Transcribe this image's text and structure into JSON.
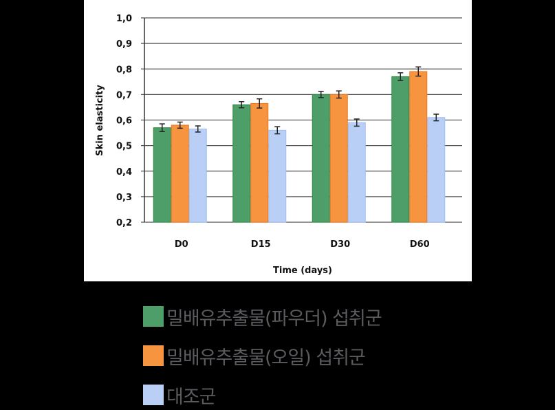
{
  "chart_data": {
    "type": "bar",
    "title": "",
    "xlabel": "Time (days)",
    "ylabel": "Skin elasticity",
    "ylim": [
      0.2,
      1.0
    ],
    "yticks": [
      "0,2",
      "0,3",
      "0,4",
      "0,5",
      "0,6",
      "0,7",
      "0,8",
      "0,9",
      "1,0"
    ],
    "grid": true,
    "legend_position": "bottom",
    "categories": [
      "D0",
      "D15",
      "D30",
      "D60"
    ],
    "series": [
      {
        "name": "밀배유추출물(파우더) 섭취군",
        "color": "#4e9e6a",
        "values": [
          0.57,
          0.66,
          0.7,
          0.77
        ],
        "errors": [
          0.015,
          0.012,
          0.012,
          0.015
        ]
      },
      {
        "name": "밀배유추출물(오일) 섭취군",
        "color": "#f79440",
        "values": [
          0.58,
          0.665,
          0.7,
          0.79
        ],
        "errors": [
          0.012,
          0.018,
          0.014,
          0.018
        ]
      },
      {
        "name": "대조군",
        "color": "#b9cff6",
        "values": [
          0.565,
          0.56,
          0.59,
          0.61
        ],
        "errors": [
          0.012,
          0.014,
          0.014,
          0.013
        ]
      }
    ]
  },
  "legend": {
    "items": [
      {
        "label": "밀배유추출물(파우더) 섭취군",
        "color": "#4e9e6a"
      },
      {
        "label": "밀배유추출물(오일) 섭취군",
        "color": "#f79440"
      },
      {
        "label": "대조군",
        "color": "#b9cff6"
      }
    ]
  }
}
